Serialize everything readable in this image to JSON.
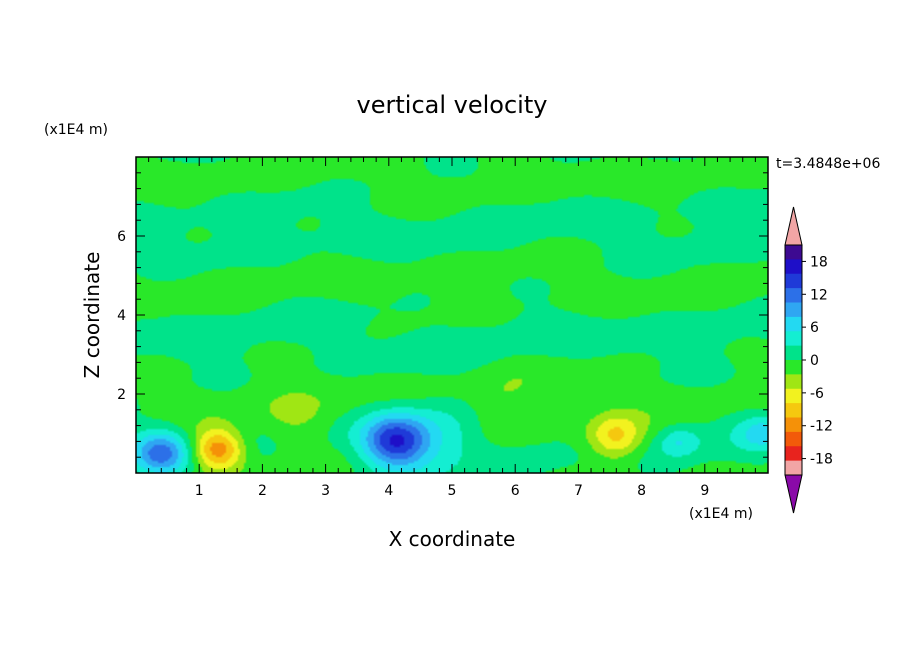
{
  "chart_data": {
    "type": "heatmap",
    "title": "vertical velocity",
    "xlabel": "X coordinate",
    "ylabel": "Z coordinate",
    "x_unit": "(x1E4 m)",
    "y_unit": "(x1E4 m)",
    "time_label": "t=3.4848e+06",
    "xlim": [
      0,
      10
    ],
    "ylim": [
      0,
      8
    ],
    "x_ticks": [
      "1",
      "2",
      "3",
      "4",
      "5",
      "6",
      "7",
      "8",
      "9"
    ],
    "y_ticks": [
      "2",
      "4",
      "6"
    ],
    "colorbar": {
      "levels": [
        -21,
        -18,
        -15,
        -12,
        -9,
        -6,
        -3,
        0,
        3,
        6,
        9,
        12,
        15,
        18,
        21
      ],
      "tick_labels": [
        "18",
        "12",
        "6",
        "0",
        "-6",
        "-12",
        "-18"
      ],
      "tick_values": [
        18,
        12,
        6,
        0,
        -6,
        -12,
        -18
      ],
      "colors": [
        "#3d0a91",
        "#1e0fc8",
        "#1f3ad8",
        "#2c70e8",
        "#2fa6f2",
        "#23d9f2",
        "#14eed2",
        "#00e38a",
        "#29e829",
        "#a0e614",
        "#f2f21f",
        "#f5c80f",
        "#f59108",
        "#f25a0a",
        "#e8231e",
        "#f2a5a5"
      ],
      "under_color": "#8a0aa8",
      "over_color": "#f2a5a5"
    },
    "features": [
      {
        "x": 0.4,
        "z": 0.5,
        "w": 0.42,
        "peak": 12
      },
      {
        "x": 1.3,
        "z": 0.6,
        "w": 0.4,
        "peak": -15
      },
      {
        "x": 2.5,
        "z": 1.2,
        "w": 0.6,
        "peak": -4
      },
      {
        "x": 4.1,
        "z": 0.8,
        "w": 0.5,
        "peak": 16
      },
      {
        "x": 4.8,
        "z": 1.0,
        "w": 0.7,
        "peak": 5
      },
      {
        "x": 5.8,
        "z": 1.4,
        "w": 0.6,
        "peak": -4
      },
      {
        "x": 7.6,
        "z": 0.9,
        "w": 0.45,
        "peak": -11
      },
      {
        "x": 8.6,
        "z": 0.8,
        "w": 0.3,
        "peak": 5
      },
      {
        "x": 9.9,
        "z": 1.0,
        "w": 0.35,
        "peak": 6
      }
    ]
  }
}
